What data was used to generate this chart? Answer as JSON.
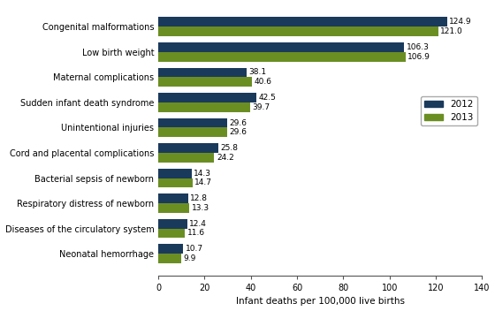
{
  "categories": [
    "Congenital malformations",
    "Low birth weight",
    "Maternal complications",
    "Sudden infant death syndrome",
    "Unintentional injuries",
    "Cord and placental complications",
    "Bacterial sepsis of newborn",
    "Respiratory distress of newborn",
    "Diseases of the circulatory system",
    "Neonatal hemorrhage"
  ],
  "values_2012": [
    124.9,
    106.3,
    38.1,
    42.5,
    29.6,
    25.8,
    14.3,
    12.8,
    12.4,
    10.7
  ],
  "values_2013": [
    121.0,
    106.9,
    40.6,
    39.7,
    29.6,
    24.2,
    14.7,
    13.3,
    11.6,
    9.9
  ],
  "color_2012": "#1a3a5c",
  "color_2013": "#6b8e23",
  "xlabel": "Infant deaths per 100,000 live births",
  "xlim": [
    0,
    140
  ],
  "xticks": [
    0,
    20,
    40,
    60,
    80,
    100,
    120,
    140
  ],
  "legend_labels": [
    "2012",
    "2013"
  ],
  "bar_height": 0.38,
  "label_fontsize": 6.5,
  "axis_fontsize": 7.5,
  "tick_fontsize": 7.0,
  "background_color": "#ffffff"
}
